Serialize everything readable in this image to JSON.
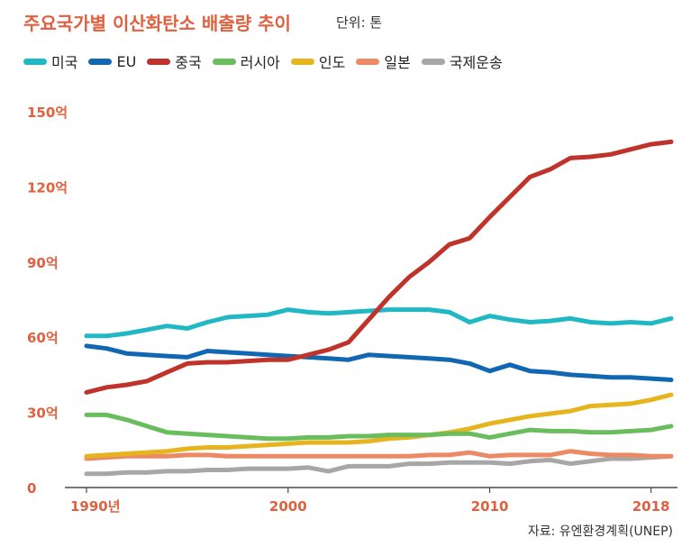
{
  "header": {
    "title": "주요국가별 이산화탄소 배출량 추이",
    "unit": "단위: 톤"
  },
  "source": "자료: 유엔환경계획(UNEP)",
  "chart_data": {
    "type": "line",
    "title": "주요국가별 이산화탄소 배출량 추이",
    "xlabel": "",
    "ylabel": "",
    "xlim": [
      1990,
      2019
    ],
    "ylim": [
      0,
      150
    ],
    "y_ticks": [
      {
        "value": 150,
        "label": "150억"
      },
      {
        "value": 120,
        "label": "120억"
      },
      {
        "value": 90,
        "label": "90억"
      },
      {
        "value": 60,
        "label": "60억"
      },
      {
        "value": 30,
        "label": "30억"
      },
      {
        "value": 0,
        "label": "0"
      }
    ],
    "x_ticks": [
      {
        "value": 1990,
        "label": "1990년"
      },
      {
        "value": 2000,
        "label": "2000"
      },
      {
        "value": 2010,
        "label": "2010"
      },
      {
        "value": 2018,
        "label": "2018"
      }
    ],
    "grid": false,
    "legend_position": "top",
    "x": [
      1990,
      1991,
      1992,
      1993,
      1994,
      1995,
      1996,
      1997,
      1998,
      1999,
      2000,
      2001,
      2002,
      2003,
      2004,
      2005,
      2006,
      2007,
      2008,
      2009,
      2010,
      2011,
      2012,
      2013,
      2014,
      2015,
      2016,
      2017,
      2018,
      2019
    ],
    "series": [
      {
        "name": "미국",
        "color": "#1fb8c4",
        "values": [
          60.5,
          60.5,
          61.5,
          63,
          64.5,
          63.5,
          66,
          68,
          68.5,
          69,
          71,
          70,
          69.5,
          70,
          70.5,
          71,
          71,
          71,
          70,
          66,
          68.5,
          67,
          66,
          66.5,
          67.5,
          66,
          65.5,
          66,
          65.5,
          67.5
        ]
      },
      {
        "name": "EU",
        "color": "#1167b1",
        "values": [
          56.5,
          55.5,
          53.5,
          53,
          52.5,
          52,
          54.5,
          54,
          53.5,
          53,
          52.5,
          52,
          51.5,
          51,
          53,
          52.5,
          52,
          51.5,
          51,
          49.5,
          46.5,
          49,
          46.5,
          46,
          45,
          44.5,
          44,
          44,
          43.5,
          43
        ]
      },
      {
        "name": "중국",
        "color": "#c0332b",
        "values": [
          38,
          40,
          41,
          42.5,
          46,
          49.5,
          50,
          50,
          50.5,
          51,
          51,
          53,
          55,
          58,
          67,
          76,
          84,
          90,
          97,
          99.5,
          108,
          116,
          124,
          127,
          131.5,
          132,
          133,
          135,
          137,
          138
        ]
      },
      {
        "name": "러시아",
        "color": "#69bd5d",
        "values": [
          29,
          29,
          27,
          24.5,
          22,
          21.5,
          21,
          20.5,
          20,
          19.5,
          19.5,
          20,
          20,
          20.5,
          20.5,
          21,
          21,
          21,
          21.5,
          21.5,
          20,
          21.5,
          23,
          22.5,
          22.5,
          22,
          22,
          22.5,
          23,
          24.5
        ]
      },
      {
        "name": "인도",
        "color": "#e6b51e",
        "values": [
          12.5,
          13,
          13.5,
          14,
          14.5,
          15.5,
          16,
          16,
          16.5,
          17,
          17.5,
          18,
          18,
          18,
          18.5,
          19.5,
          20,
          21,
          22,
          23.5,
          25.5,
          27,
          28.5,
          29.5,
          30.5,
          32.5,
          33,
          33.5,
          35,
          37
        ]
      },
      {
        "name": "일본",
        "color": "#ec8a66",
        "values": [
          11.5,
          12,
          12.5,
          12.5,
          12.5,
          13,
          13,
          12.5,
          12.5,
          12.5,
          12.5,
          12.5,
          12.5,
          12.5,
          12.5,
          12.5,
          12.5,
          13,
          13,
          14,
          12.5,
          13,
          13,
          13,
          14.5,
          13.5,
          13,
          13,
          12.5,
          12.5
        ]
      },
      {
        "name": "국제운송",
        "color": "#a7a7a7",
        "values": [
          5.5,
          5.5,
          6,
          6,
          6.5,
          6.5,
          7,
          7,
          7.5,
          7.5,
          7.5,
          8,
          6.5,
          8.5,
          8.5,
          8.5,
          9.5,
          9.5,
          10,
          10,
          10,
          9.5,
          10.5,
          11,
          9.5,
          10.5,
          11.5,
          11.5,
          12,
          12.5
        ]
      }
    ]
  }
}
